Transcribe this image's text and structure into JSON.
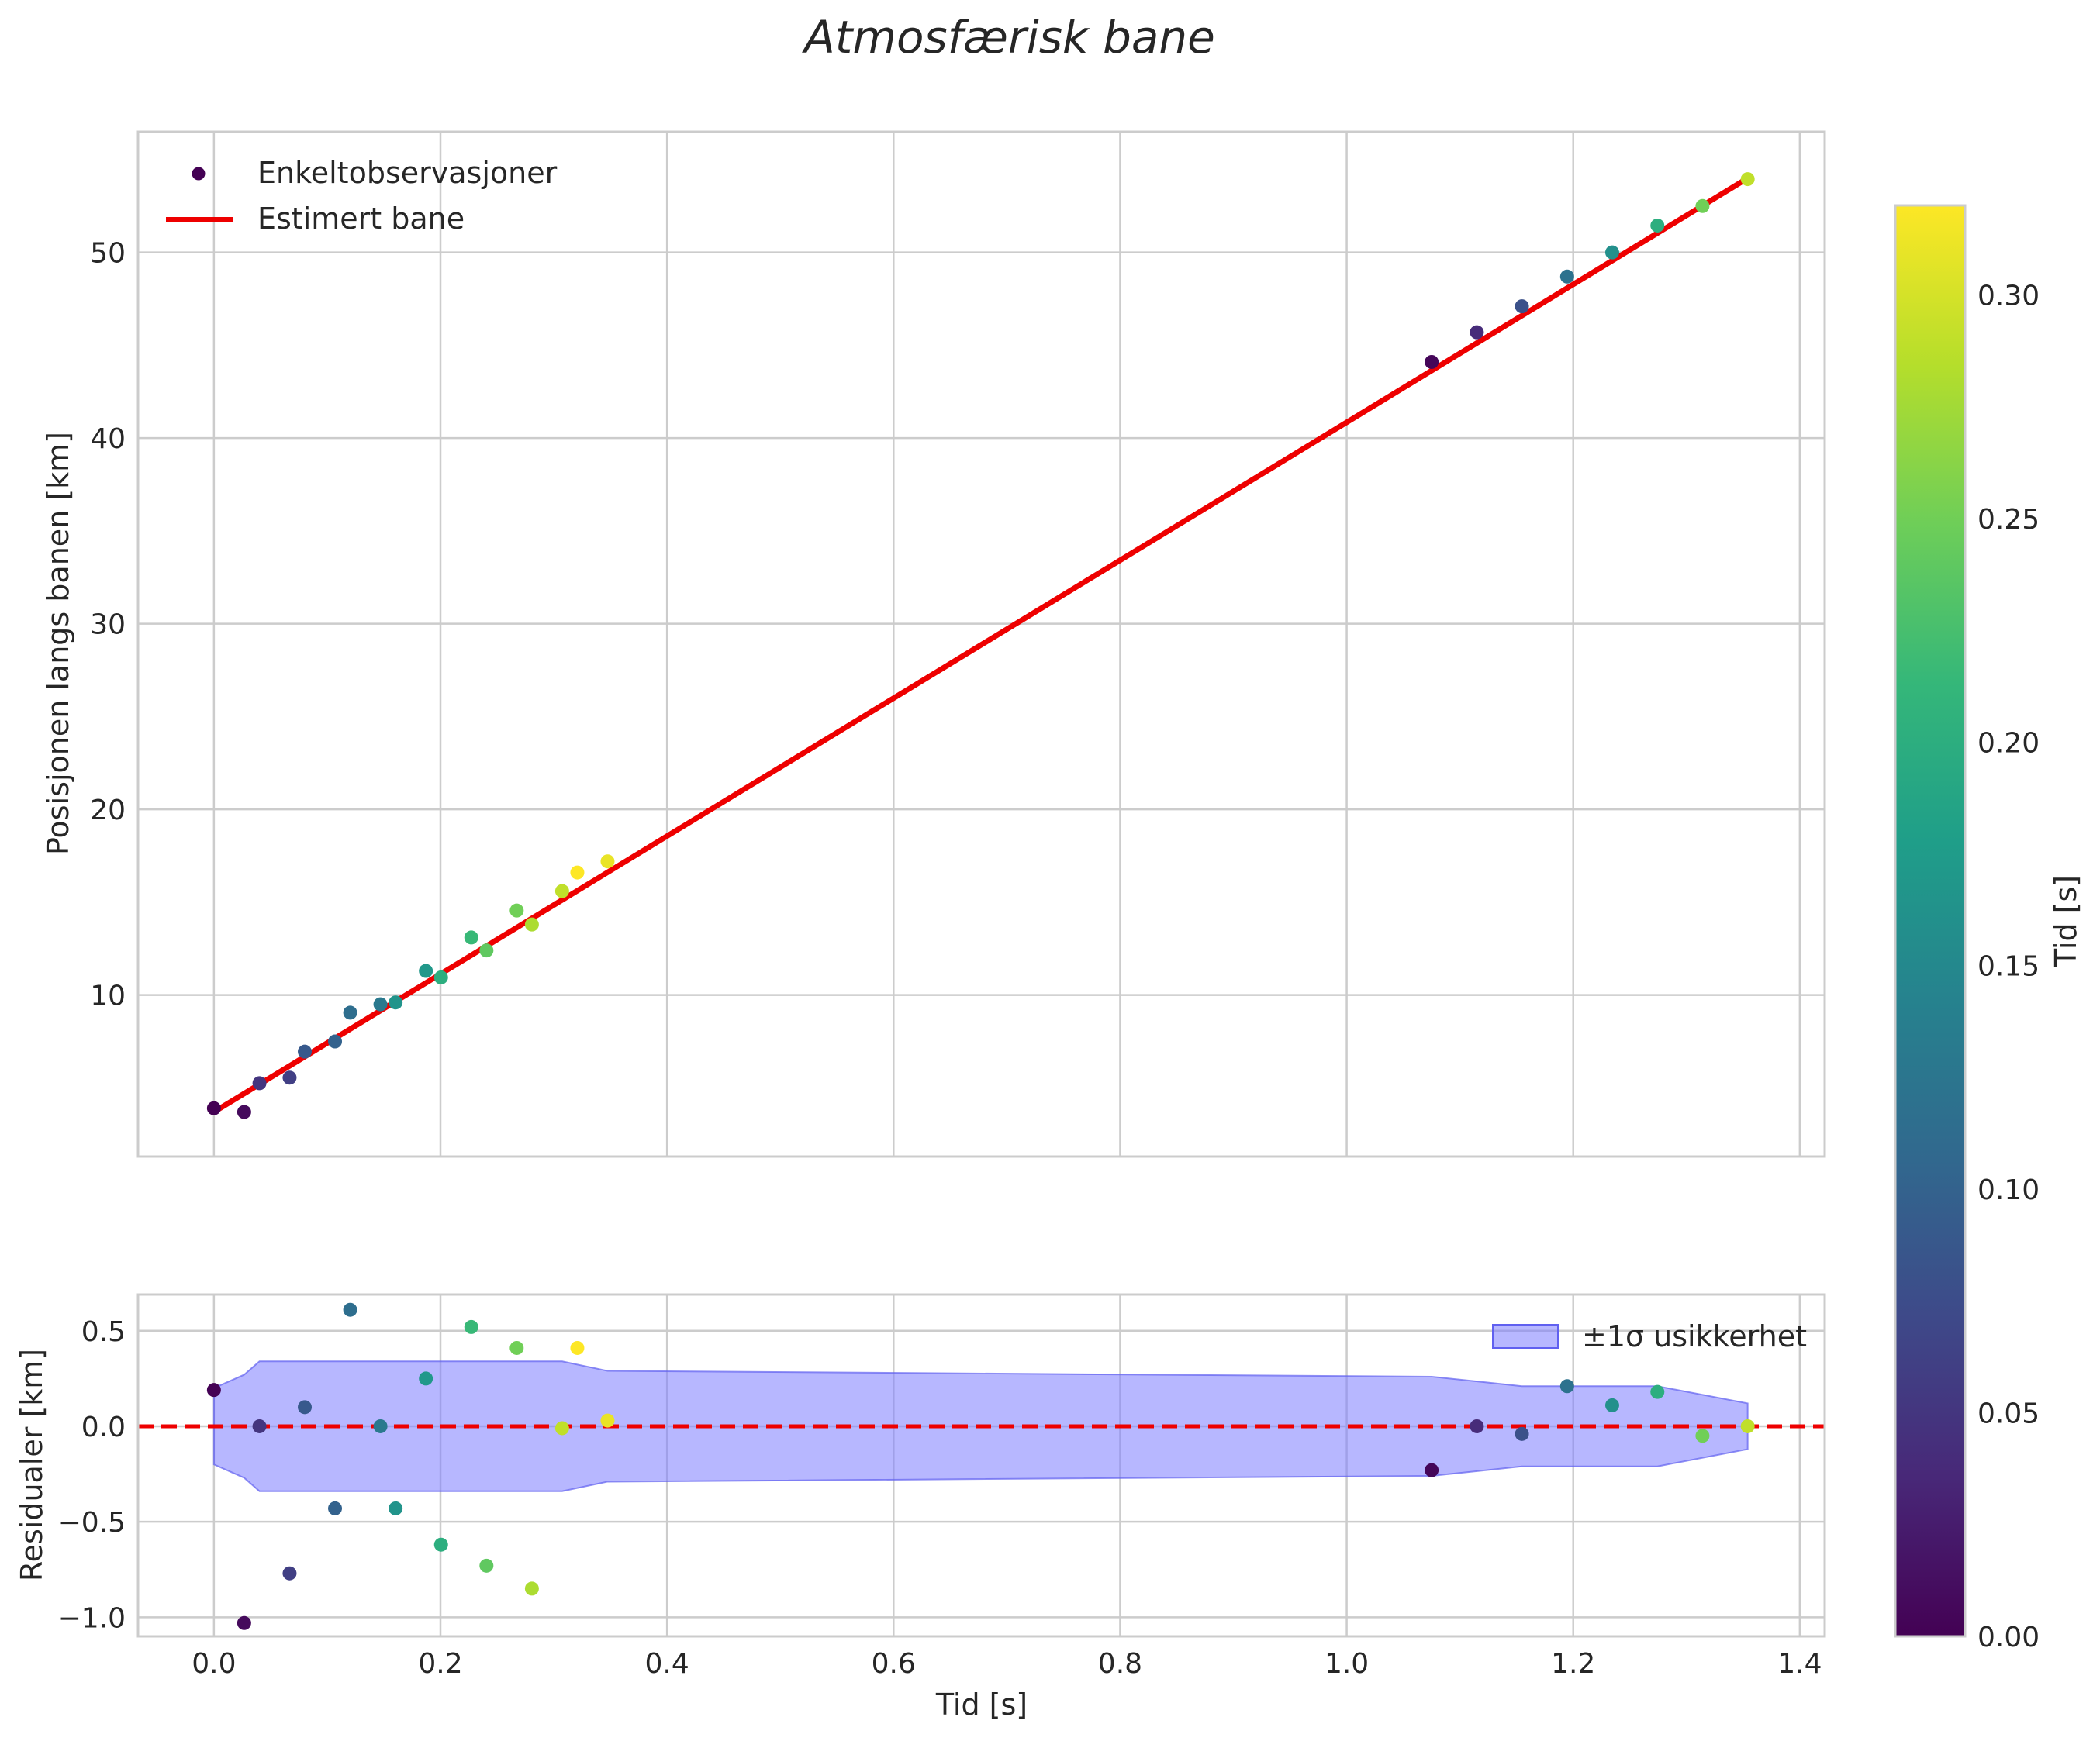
{
  "chart_data": [
    {
      "type": "scatter+line",
      "title": "Atmosfærisk bane",
      "xlabel": "",
      "ylabel": "Posisjonen langs banen [km]",
      "xlim": [
        -0.067,
        1.422
      ],
      "ylim": [
        1.3,
        56.5
      ],
      "grid": true,
      "legend_position": "upper-left",
      "xticks": [
        0.0,
        0.2,
        0.4,
        0.6,
        0.8,
        1.0,
        1.2,
        1.4
      ],
      "yticks": [
        10,
        20,
        30,
        40,
        50
      ],
      "ytick_labels": [
        "10",
        "20",
        "30",
        "40",
        "50"
      ],
      "series": [
        {
          "name": "Enkeltobservasjoner",
          "kind": "scatter",
          "color_by": "t_sub",
          "points": [
            {
              "x": 0.0,
              "y": 3.9,
              "t_sub": 0.0
            },
            {
              "x": 0.0267,
              "y": 3.7,
              "t_sub": 0.008
            },
            {
              "x": 0.0402,
              "y": 5.25,
              "t_sub": 0.05
            },
            {
              "x": 0.0668,
              "y": 5.55,
              "t_sub": 0.06
            },
            {
              "x": 0.0802,
              "y": 6.95,
              "t_sub": 0.09
            },
            {
              "x": 0.1069,
              "y": 7.5,
              "t_sub": 0.1
            },
            {
              "x": 0.1203,
              "y": 9.05,
              "t_sub": 0.115
            },
            {
              "x": 0.147,
              "y": 9.5,
              "t_sub": 0.13
            },
            {
              "x": 0.1604,
              "y": 9.6,
              "t_sub": 0.165
            },
            {
              "x": 0.1871,
              "y": 11.3,
              "t_sub": 0.17
            },
            {
              "x": 0.2005,
              "y": 10.95,
              "t_sub": 0.2
            },
            {
              "x": 0.2272,
              "y": 13.1,
              "t_sub": 0.215
            },
            {
              "x": 0.2406,
              "y": 12.4,
              "t_sub": 0.24
            },
            {
              "x": 0.2673,
              "y": 14.55,
              "t_sub": 0.25
            },
            {
              "x": 0.2807,
              "y": 13.8,
              "t_sub": 0.28
            },
            {
              "x": 0.3074,
              "y": 15.6,
              "t_sub": 0.29
            },
            {
              "x": 0.3208,
              "y": 16.6,
              "t_sub": 0.32
            },
            {
              "x": 0.3475,
              "y": 17.2,
              "t_sub": 0.31
            },
            {
              "x": 1.075,
              "y": 44.1,
              "t_sub": 0.005
            },
            {
              "x": 1.1149,
              "y": 45.7,
              "t_sub": 0.04
            },
            {
              "x": 1.1547,
              "y": 47.1,
              "t_sub": 0.08
            },
            {
              "x": 1.1946,
              "y": 48.7,
              "t_sub": 0.12
            },
            {
              "x": 1.2344,
              "y": 50.0,
              "t_sub": 0.16
            },
            {
              "x": 1.2743,
              "y": 51.45,
              "t_sub": 0.2
            },
            {
              "x": 1.3141,
              "y": 52.5,
              "t_sub": 0.25
            },
            {
              "x": 1.354,
              "y": 53.95,
              "t_sub": 0.29
            }
          ]
        },
        {
          "name": "Estimert bane",
          "kind": "line",
          "color": "#ee0000",
          "x": [
            0.0,
            1.354
          ],
          "y": [
            3.7,
            54.0
          ]
        }
      ]
    },
    {
      "type": "scatter+band",
      "xlabel": "Tid [s]",
      "ylabel": "Residualer [km]",
      "xlim": [
        -0.067,
        1.422
      ],
      "ylim": [
        -1.1,
        0.69
      ],
      "grid": true,
      "legend_position": "upper-right",
      "xticks": [
        0.0,
        0.2,
        0.4,
        0.6,
        0.8,
        1.0,
        1.2,
        1.4
      ],
      "xtick_labels": [
        "0.0",
        "0.2",
        "0.4",
        "0.6",
        "0.8",
        "1.0",
        "1.2",
        "1.4"
      ],
      "yticks": [
        -1.0,
        -0.5,
        0.0,
        0.5
      ],
      "ytick_labels": [
        "−1.0",
        "−0.5",
        "0.0",
        "0.5"
      ],
      "zero_line": {
        "y": 0.0,
        "style": "dashed",
        "color": "#ee0000"
      },
      "band": {
        "name": "±1σ usikkerhet",
        "color": "#7b7bff",
        "x": [
          0.0,
          0.0267,
          0.0402,
          0.3074,
          0.3475,
          1.075,
          1.1547,
          1.2743,
          1.354
        ],
        "sigma": [
          0.2,
          0.27,
          0.34,
          0.34,
          0.29,
          0.26,
          0.21,
          0.21,
          0.12
        ]
      },
      "points": [
        {
          "x": 0.0,
          "y": 0.19,
          "t_sub": 0.0
        },
        {
          "x": 0.0267,
          "y": -1.03,
          "t_sub": 0.008
        },
        {
          "x": 0.0402,
          "y": 0.0,
          "t_sub": 0.05
        },
        {
          "x": 0.0668,
          "y": -0.77,
          "t_sub": 0.06
        },
        {
          "x": 0.0802,
          "y": 0.1,
          "t_sub": 0.09
        },
        {
          "x": 0.1069,
          "y": -0.43,
          "t_sub": 0.1
        },
        {
          "x": 0.1203,
          "y": 0.61,
          "t_sub": 0.115
        },
        {
          "x": 0.147,
          "y": 0.0,
          "t_sub": 0.13
        },
        {
          "x": 0.1604,
          "y": -0.43,
          "t_sub": 0.165
        },
        {
          "x": 0.1871,
          "y": 0.25,
          "t_sub": 0.17
        },
        {
          "x": 0.2005,
          "y": -0.62,
          "t_sub": 0.2
        },
        {
          "x": 0.2272,
          "y": 0.52,
          "t_sub": 0.215
        },
        {
          "x": 0.2406,
          "y": -0.73,
          "t_sub": 0.24
        },
        {
          "x": 0.2673,
          "y": 0.41,
          "t_sub": 0.25
        },
        {
          "x": 0.2807,
          "y": -0.85,
          "t_sub": 0.28
        },
        {
          "x": 0.3074,
          "y": -0.01,
          "t_sub": 0.29
        },
        {
          "x": 0.3208,
          "y": 0.41,
          "t_sub": 0.32
        },
        {
          "x": 0.3475,
          "y": 0.03,
          "t_sub": 0.31
        },
        {
          "x": 1.075,
          "y": -0.23,
          "t_sub": 0.005
        },
        {
          "x": 1.1149,
          "y": 0.0,
          "t_sub": 0.04
        },
        {
          "x": 1.1547,
          "y": -0.04,
          "t_sub": 0.08
        },
        {
          "x": 1.1946,
          "y": 0.21,
          "t_sub": 0.12
        },
        {
          "x": 1.2344,
          "y": 0.11,
          "t_sub": 0.16
        },
        {
          "x": 1.2743,
          "y": 0.18,
          "t_sub": 0.2
        },
        {
          "x": 1.3141,
          "y": -0.05,
          "t_sub": 0.25
        },
        {
          "x": 1.354,
          "y": 0.0,
          "t_sub": 0.29
        }
      ]
    },
    {
      "type": "colorbar",
      "label": "Tid [s]",
      "colormap": "viridis",
      "colormap_stops": [
        "#440154",
        "#482878",
        "#3e4989",
        "#31688e",
        "#26828e",
        "#1f9e89",
        "#35b779",
        "#6ece58",
        "#b5de2b",
        "#fde725"
      ],
      "range": [
        0.0,
        0.32
      ],
      "ticks": [
        0.0,
        0.05,
        0.1,
        0.15,
        0.2,
        0.25,
        0.3
      ],
      "tick_labels": [
        "0.00",
        "0.05",
        "0.10",
        "0.15",
        "0.20",
        "0.25",
        "0.30"
      ]
    }
  ]
}
